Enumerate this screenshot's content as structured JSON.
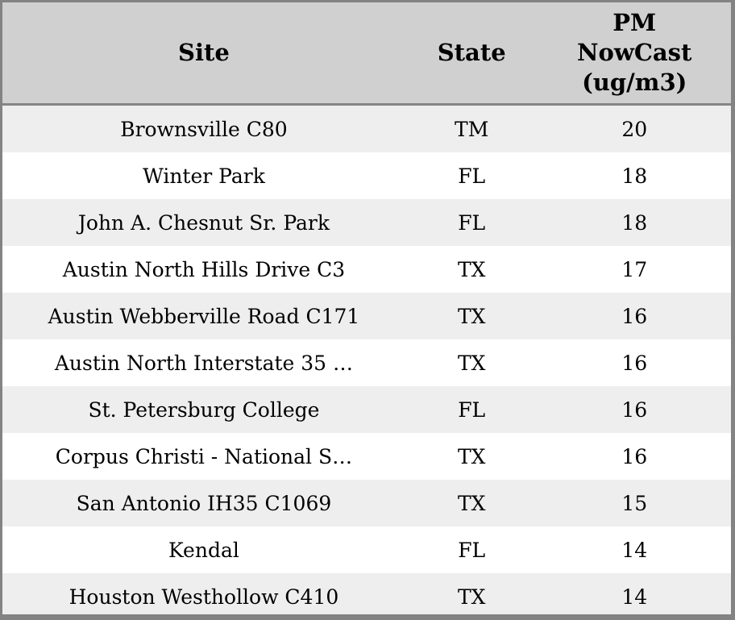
{
  "chart_data": {
    "type": "table",
    "title": "",
    "columns": [
      "Site",
      "State",
      "PM NowCast (ug/m3)"
    ],
    "header_lines": [
      [
        "Site"
      ],
      [
        "State"
      ],
      [
        "PM",
        "NowCast",
        "(ug/m3)"
      ]
    ],
    "rows": [
      [
        "Brownsville C80",
        "TM",
        20
      ],
      [
        "Winter Park",
        "FL",
        18
      ],
      [
        "John A. Chesnut Sr. Park",
        "FL",
        18
      ],
      [
        "Austin North Hills Drive C3",
        "TX",
        17
      ],
      [
        "Austin Webberville Road C171",
        "TX",
        16
      ],
      [
        "Austin North Interstate 35 …",
        "TX",
        16
      ],
      [
        "St. Petersburg College",
        "FL",
        16
      ],
      [
        "Corpus Christi - National S…",
        "TX",
        16
      ],
      [
        "San Antonio IH35 C1069",
        "TX",
        15
      ],
      [
        "Kendal",
        "FL",
        14
      ],
      [
        "Houston Westhollow C410",
        "TX",
        14
      ]
    ],
    "layout": {
      "striped": true,
      "header_bg": "#d0d0d0",
      "row_alt_bg": "#eeeeee",
      "row_bg": "#ffffff",
      "border_color": "#838383",
      "text_color": "#000000"
    }
  }
}
